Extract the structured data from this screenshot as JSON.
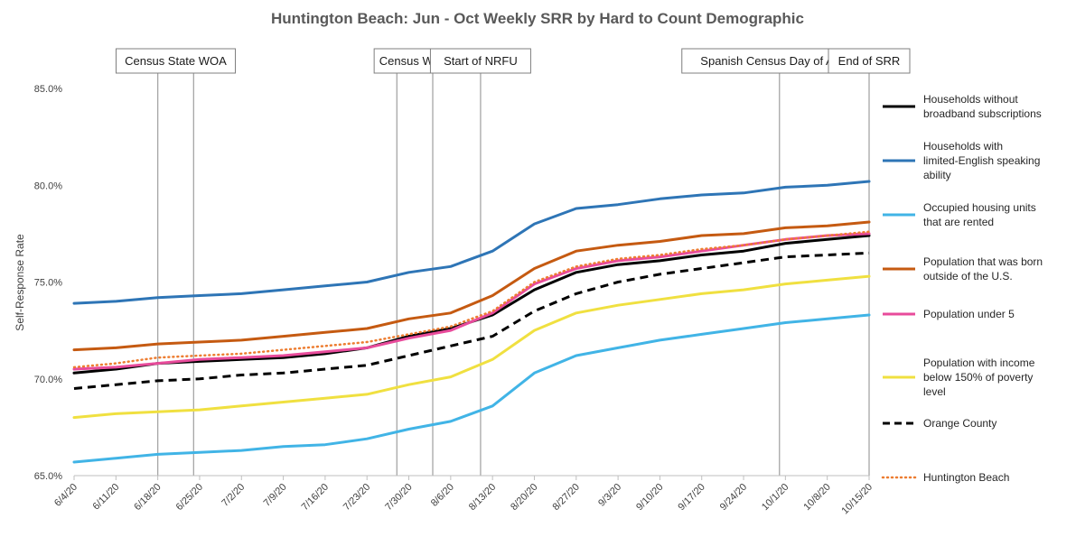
{
  "chart_data": {
    "type": "line",
    "title": "Huntington Beach: Jun - Oct Weekly SRR by Hard to Count Demographic",
    "ylabel": "Self-Response Rate",
    "xlabel": "",
    "ylim": [
      65,
      85
    ],
    "yticks": [
      "65.0%",
      "70.0%",
      "75.0%",
      "80.0%",
      "85.0%"
    ],
    "ytick_values": [
      65,
      70,
      75,
      80,
      85
    ],
    "x": [
      "6/4/20",
      "6/11/20",
      "6/18/20",
      "6/25/20",
      "7/2/20",
      "7/9/20",
      "7/16/20",
      "7/23/20",
      "7/30/20",
      "8/6/20",
      "8/13/20",
      "8/20/20",
      "8/27/20",
      "9/3/20",
      "9/10/20",
      "9/17/20",
      "9/24/20",
      "10/1/20",
      "10/8/20",
      "10/15/20"
    ],
    "grid": false,
    "legend": "right",
    "annotations": [
      {
        "label": "Census State WOA",
        "dates": [
          "6/18/20",
          "6/24/20"
        ]
      },
      {
        "label": "Census WOA",
        "dates": [
          "7/28/20",
          "8/3/20"
        ]
      },
      {
        "label": "Start of NRFU",
        "dates": [
          "8/11/20"
        ]
      },
      {
        "label": "Spanish Census Day of Action",
        "dates": [
          "9/30/20"
        ]
      },
      {
        "label": "End of SRR",
        "dates": [
          "10/15/20"
        ]
      }
    ],
    "series": [
      {
        "name": "Households without broadband subscriptions",
        "color": "#000000",
        "style": "solid",
        "values": [
          70.3,
          70.5,
          70.8,
          70.9,
          71.0,
          71.1,
          71.3,
          71.6,
          72.2,
          72.6,
          73.3,
          74.6,
          75.5,
          75.9,
          76.1,
          76.4,
          76.6,
          77.0,
          77.2,
          77.4
        ]
      },
      {
        "name": "Households with limited-English speaking ability",
        "color": "#2e75b6",
        "style": "solid",
        "values": [
          73.9,
          74.0,
          74.2,
          74.3,
          74.4,
          74.6,
          74.8,
          75.0,
          75.5,
          75.8,
          76.6,
          78.0,
          78.8,
          79.0,
          79.3,
          79.5,
          79.6,
          79.9,
          80.0,
          80.2
        ]
      },
      {
        "name": "Occupied housing units that are rented",
        "color": "#41b4e6",
        "style": "solid",
        "values": [
          65.7,
          65.9,
          66.1,
          66.2,
          66.3,
          66.5,
          66.6,
          66.9,
          67.4,
          67.8,
          68.6,
          70.3,
          71.2,
          71.6,
          72.0,
          72.3,
          72.6,
          72.9,
          73.1,
          73.3
        ]
      },
      {
        "name": "Population that was born outside of the U.S.",
        "color": "#c55a11",
        "style": "solid",
        "values": [
          71.5,
          71.6,
          71.8,
          71.9,
          72.0,
          72.2,
          72.4,
          72.6,
          73.1,
          73.4,
          74.3,
          75.7,
          76.6,
          76.9,
          77.1,
          77.4,
          77.5,
          77.8,
          77.9,
          78.1
        ]
      },
      {
        "name": "Population under 5",
        "color": "#e84b9b",
        "style": "solid",
        "values": [
          70.5,
          70.6,
          70.8,
          71.0,
          71.1,
          71.2,
          71.4,
          71.6,
          72.1,
          72.5,
          73.4,
          74.9,
          75.7,
          76.1,
          76.3,
          76.6,
          76.9,
          77.2,
          77.4,
          77.5
        ]
      },
      {
        "name": "Population with income below 150% of poverty level",
        "color": "#f0e040",
        "style": "solid",
        "values": [
          68.0,
          68.2,
          68.3,
          68.4,
          68.6,
          68.8,
          69.0,
          69.2,
          69.7,
          70.1,
          71.0,
          72.5,
          73.4,
          73.8,
          74.1,
          74.4,
          74.6,
          74.9,
          75.1,
          75.3
        ]
      },
      {
        "name": "Orange County",
        "color": "#000000",
        "style": "dashed",
        "values": [
          69.5,
          69.7,
          69.9,
          70.0,
          70.2,
          70.3,
          70.5,
          70.7,
          71.2,
          71.7,
          72.2,
          73.5,
          74.4,
          75.0,
          75.4,
          75.7,
          76.0,
          76.3,
          76.4,
          76.5
        ]
      },
      {
        "name": "Huntington Beach",
        "color": "#ed7d31",
        "style": "dotted",
        "values": [
          70.6,
          70.8,
          71.1,
          71.2,
          71.3,
          71.5,
          71.7,
          71.9,
          72.3,
          72.7,
          73.5,
          75.0,
          75.8,
          76.2,
          76.4,
          76.7,
          76.9,
          77.2,
          77.4,
          77.6
        ]
      }
    ]
  }
}
